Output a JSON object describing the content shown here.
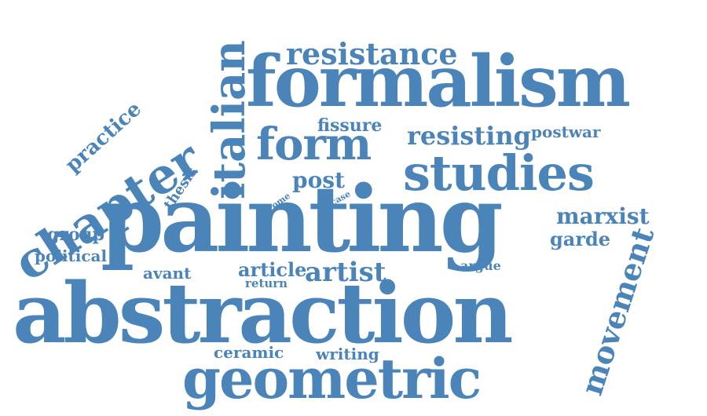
{
  "accent_color": "#4a84b9",
  "words": {
    "abstraction": "abstraction",
    "painting": "painting",
    "formalism": "formalism",
    "geometric": "geometric",
    "studies": "studies",
    "form": "form",
    "chapter": "chapter",
    "italian": "italian",
    "resistance": "resistance",
    "movement": "movement",
    "resisting": "resisting",
    "practice": "practice",
    "artist": "artist",
    "marxist": "marxist",
    "post": "post",
    "fissure": "fissure",
    "postwar": "postwar",
    "article": "article",
    "garde": "garde",
    "group": "group",
    "political": "political",
    "avant": "avant",
    "ceramic": "ceramic",
    "writing": "writing",
    "thesis": "thesis",
    "return": "return",
    "argue": "argue",
    "rome": "rome",
    "case": "case"
  }
}
